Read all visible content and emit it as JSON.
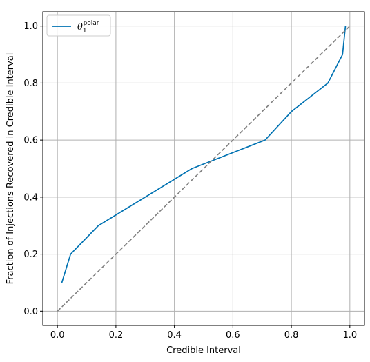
{
  "chart_data": {
    "type": "line",
    "title": "",
    "xlabel": "Credible Interval",
    "ylabel": "Fraction of Injections Recovered in Credible Interval",
    "xlim": [
      -0.05,
      1.05
    ],
    "ylim": [
      -0.05,
      1.05
    ],
    "xticks": [
      0.0,
      0.2,
      0.4,
      0.6,
      0.8,
      1.0
    ],
    "yticks": [
      0.0,
      0.2,
      0.4,
      0.6,
      0.8,
      1.0
    ],
    "xtick_labels": [
      "0.0",
      "0.2",
      "0.4",
      "0.6",
      "0.8",
      "1.0"
    ],
    "ytick_labels": [
      "0.0",
      "0.2",
      "0.4",
      "0.6",
      "0.8",
      "1.0"
    ],
    "grid": true,
    "legend_position": "top-left",
    "series": [
      {
        "name": "θ₁^polar",
        "legend_base": "θ",
        "legend_sub": "1",
        "legend_sup": "polar",
        "color": "#0072B2",
        "style": "solid",
        "x": [
          0.015,
          0.045,
          0.14,
          0.46,
          0.71,
          0.8,
          0.925,
          0.975,
          0.985
        ],
        "y": [
          0.1,
          0.2,
          0.3,
          0.5,
          0.6,
          0.7,
          0.8,
          0.9,
          1.0
        ]
      },
      {
        "name": "",
        "color": "#7f7f7f",
        "style": "dashed",
        "x": [
          0.0,
          1.0
        ],
        "y": [
          0.0,
          1.0
        ]
      }
    ]
  }
}
